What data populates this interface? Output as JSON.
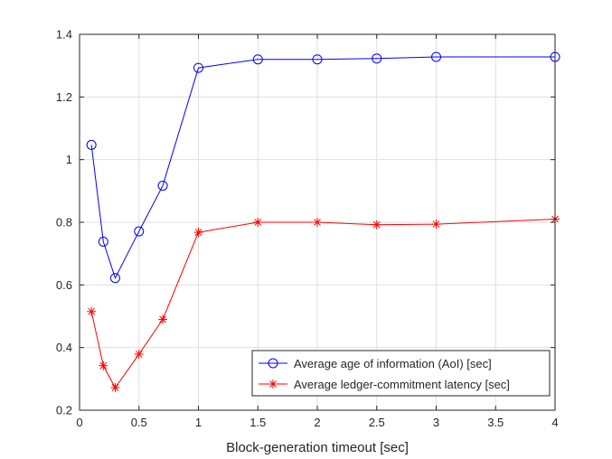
{
  "chart_data": {
    "type": "line",
    "title": "",
    "xlabel": "Block-generation timeout [sec]",
    "ylabel": "",
    "xlim": [
      0,
      4
    ],
    "ylim": [
      0.2,
      1.4
    ],
    "grid": true,
    "legend_position": "bottom-right",
    "x_ticks": [
      0,
      0.5,
      1,
      1.5,
      2,
      2.5,
      3,
      3.5,
      4
    ],
    "x_tick_labels": [
      "0",
      "0.5",
      "1",
      "1.5",
      "2",
      "2.5",
      "3",
      "3.5",
      "4"
    ],
    "y_ticks": [
      0.2,
      0.4,
      0.6,
      0.8,
      1.0,
      1.2,
      1.4
    ],
    "y_tick_labels": [
      "0.2",
      "0.4",
      "0.6",
      "0.8",
      "1",
      "1.2",
      "1.4"
    ],
    "x": [
      0.1,
      0.2,
      0.3,
      0.5,
      0.7,
      1,
      1.5,
      2,
      2.5,
      3,
      4
    ],
    "series": [
      {
        "name": "Average age of information (AoI) [sec]",
        "color": "#0000ff",
        "marker": "circle",
        "values": [
          1.047,
          0.738,
          0.622,
          0.771,
          0.917,
          1.293,
          1.32,
          1.32,
          1.323,
          1.328,
          1.328
        ]
      },
      {
        "name": "Average ledger-commitment latency [sec]",
        "color": "#ff0000",
        "marker": "asterisk",
        "values": [
          0.515,
          0.342,
          0.272,
          0.379,
          0.49,
          0.768,
          0.8,
          0.8,
          0.792,
          0.794,
          0.81
        ]
      }
    ]
  }
}
